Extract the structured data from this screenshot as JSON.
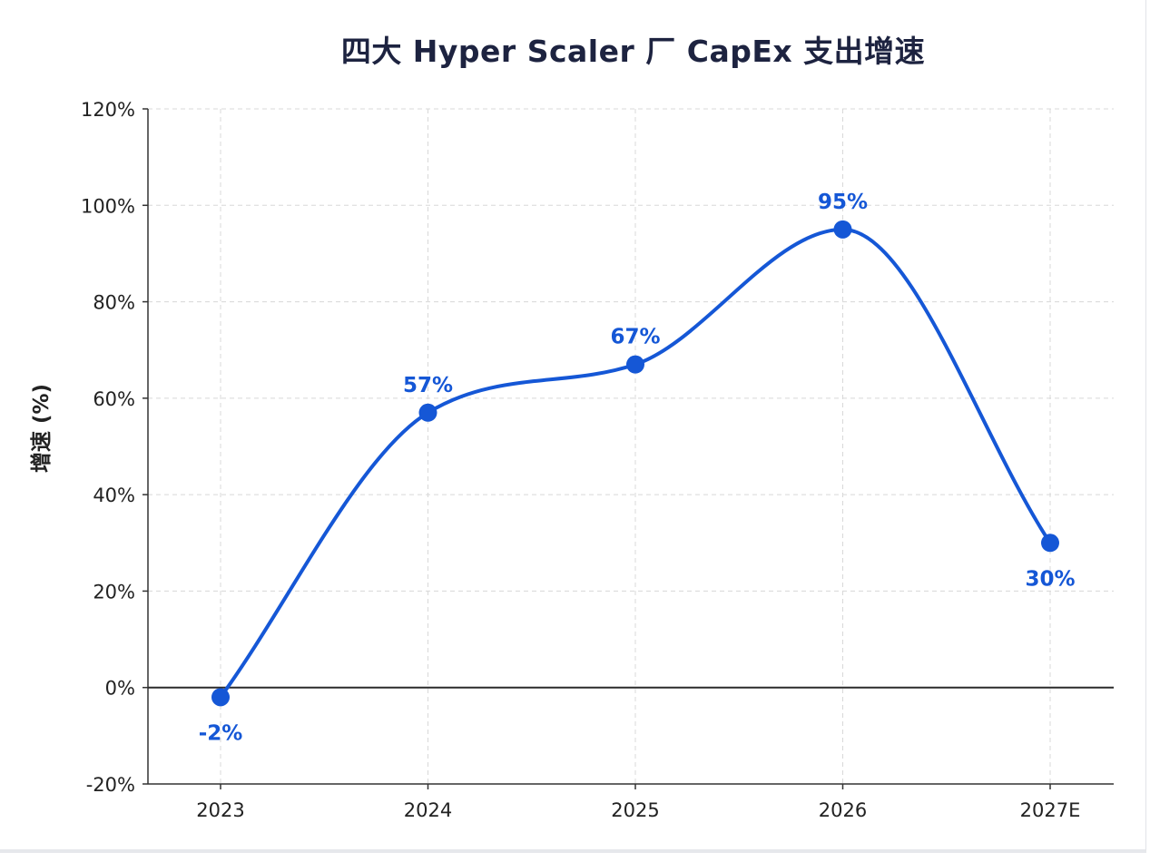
{
  "colors": {
    "series": "#1557d6",
    "grid": "#d8d8d8",
    "axis": "#333333",
    "title": "#1d2340"
  },
  "chart_data": {
    "type": "line",
    "title": "四大 Hyper Scaler 厂 CapEx 支出增速",
    "xlabel": "",
    "ylabel": "增速 (%)",
    "categories": [
      "2023",
      "2024",
      "2025",
      "2026",
      "2027E"
    ],
    "series": [
      {
        "values": [
          -2,
          57,
          67,
          95,
          30
        ],
        "data_labels": [
          "-2%",
          "57%",
          "67%",
          "95%",
          "30%"
        ],
        "label_position": [
          "below",
          "above",
          "above",
          "above",
          "below"
        ]
      }
    ],
    "ylim": [
      -20,
      120
    ],
    "yticks": [
      -20,
      0,
      20,
      40,
      60,
      80,
      100,
      120
    ],
    "ytick_labels": [
      "-20%",
      "0%",
      "20%",
      "40%",
      "60%",
      "80%",
      "100%",
      "120%"
    ],
    "grid": true,
    "zero_line": true,
    "smooth": true,
    "markers": true
  }
}
